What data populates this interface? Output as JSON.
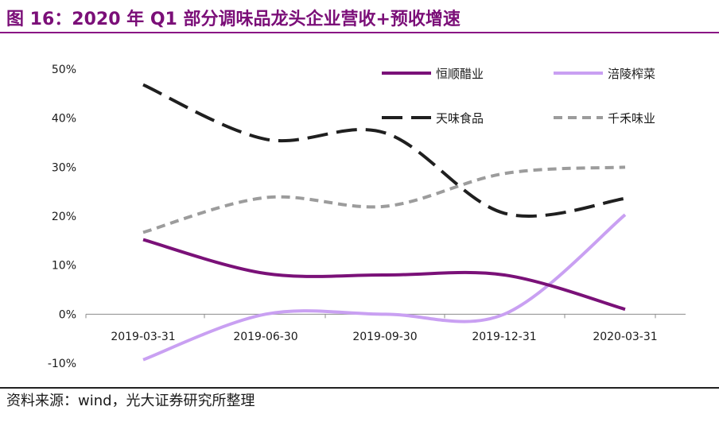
{
  "title": "图 16：2020 年 Q1 部分调味品龙头企业营收+预收增速",
  "source": "资料来源：wind，光大证券研究所整理",
  "chart_data": {
    "type": "line",
    "x": [
      "2019-03-31",
      "2019-06-30",
      "2019-09-30",
      "2019-12-31",
      "2020-03-31"
    ],
    "y_ticks": [
      "50%",
      "40%",
      "30%",
      "20%",
      "10%",
      "0%",
      "-10%"
    ],
    "ylim": [
      -10,
      50
    ],
    "grid": false,
    "legend_position": "top-right",
    "series": [
      {
        "name": "恒顺醋业",
        "values": [
          15.2,
          8.3,
          8.0,
          8.0,
          1.0
        ],
        "color": "#7a1178",
        "style": "solid"
      },
      {
        "name": "涪陵榨菜",
        "values": [
          -9.3,
          0.0,
          0.0,
          0.0,
          20.3
        ],
        "color": "#c9a0f2",
        "style": "solid"
      },
      {
        "name": "天味食品",
        "values": [
          46.8,
          35.7,
          37.0,
          20.6,
          23.6
        ],
        "color": "#1f1f1f",
        "style": "longdash"
      },
      {
        "name": "千禾味业",
        "values": [
          16.7,
          23.8,
          22.0,
          28.7,
          30.0
        ],
        "color": "#9c9c9c",
        "style": "shortdash"
      }
    ]
  }
}
